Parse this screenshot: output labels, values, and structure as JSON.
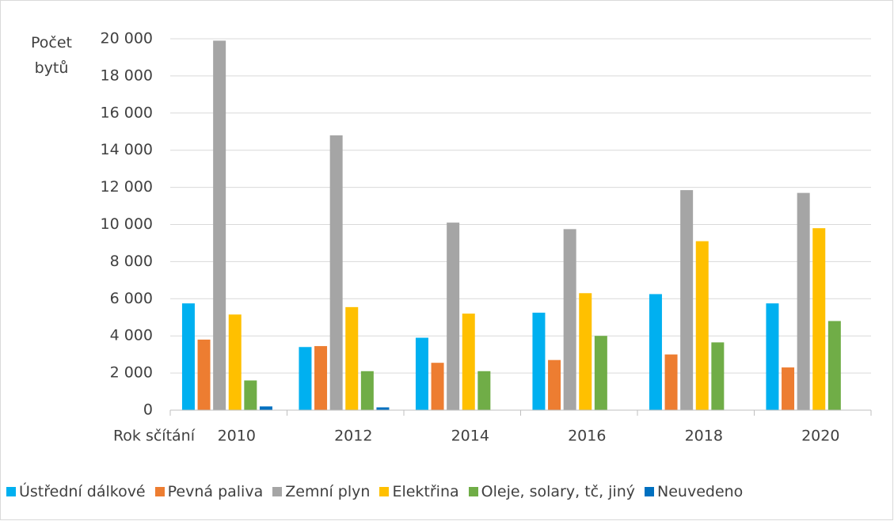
{
  "chart_data": {
    "type": "bar",
    "y_label": "Počet bytů",
    "x_label": "Rok sčítání",
    "categories": [
      "2010",
      "2012",
      "2014",
      "2016",
      "2018",
      "2020"
    ],
    "series": [
      {
        "name": "Ústřední dálkové",
        "color": "#00b0f0",
        "values": [
          5750,
          3400,
          3900,
          5250,
          6250,
          5750
        ]
      },
      {
        "name": "Pevná paliva",
        "color": "#ed7d31",
        "values": [
          3800,
          3450,
          2550,
          2700,
          3000,
          2300
        ]
      },
      {
        "name": "Zemní plyn",
        "color": "#a5a5a5",
        "values": [
          19900,
          14800,
          10100,
          9750,
          11850,
          11700
        ]
      },
      {
        "name": "Elektřina",
        "color": "#ffc000",
        "values": [
          5150,
          5550,
          5200,
          6300,
          9100,
          9800
        ]
      },
      {
        "name": "Oleje, solary, tč, jiný",
        "color": "#70ad47",
        "values": [
          1600,
          2100,
          2100,
          4000,
          3650,
          4800
        ]
      },
      {
        "name": "Neuvedeno",
        "color": "#0070c0",
        "values": [
          200,
          150,
          0,
          0,
          0,
          0
        ]
      }
    ],
    "ylim": [
      0,
      20000
    ],
    "yticks": [
      0,
      {
        "value": 2000,
        "label": "2 000"
      },
      {
        "value": 4000,
        "label": "4 000"
      },
      {
        "value": 6000,
        "label": "6 000"
      },
      {
        "value": 8000,
        "label": "8 000"
      },
      {
        "value": 10000,
        "label": "10 000"
      },
      {
        "value": 12000,
        "label": "12 000"
      },
      {
        "value": 14000,
        "label": "14 000"
      },
      {
        "value": 16000,
        "label": "16 000"
      },
      {
        "value": 18000,
        "label": "18 000"
      },
      {
        "value": 20000,
        "label": "20 000"
      }
    ],
    "grid": true
  }
}
